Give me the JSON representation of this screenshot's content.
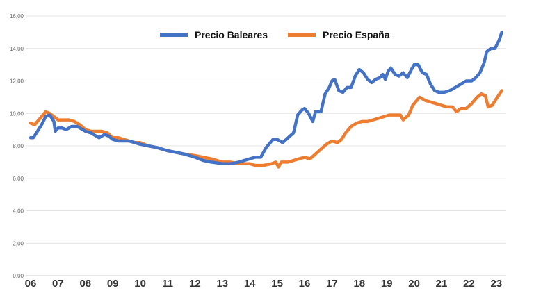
{
  "chart_data": {
    "type": "line",
    "title": "",
    "xlabel": "",
    "ylabel": "",
    "ylim": [
      0,
      16
    ],
    "xlim": [
      2006,
      2023.25
    ],
    "yticks": [
      "0,00",
      "2,00",
      "4,00",
      "6,00",
      "8,00",
      "10,00",
      "12,00",
      "14,00",
      "16,00"
    ],
    "xticks": [
      {
        "value": 2006,
        "label": "06"
      },
      {
        "value": 2007,
        "label": "07"
      },
      {
        "value": 2008,
        "label": "08"
      },
      {
        "value": 2009,
        "label": "09"
      },
      {
        "value": 2010,
        "label": "10"
      },
      {
        "value": 2011,
        "label": "11"
      },
      {
        "value": 2012,
        "label": "12"
      },
      {
        "value": 2013,
        "label": "13"
      },
      {
        "value": 2014,
        "label": "14"
      },
      {
        "value": 2015,
        "label": "15"
      },
      {
        "value": 2016,
        "label": "16"
      },
      {
        "value": 2017,
        "label": "17"
      },
      {
        "value": 2018,
        "label": "18"
      },
      {
        "value": 2019,
        "label": "19"
      },
      {
        "value": 2020,
        "label": "20"
      },
      {
        "value": 2021,
        "label": "21"
      },
      {
        "value": 2022,
        "label": "22"
      },
      {
        "value": 2023,
        "label": "23"
      }
    ],
    "grid": true,
    "legend": "top-center",
    "series": [
      {
        "name": "Precio Baleares",
        "color": "#4472C4",
        "points": [
          [
            2006.0,
            8.5
          ],
          [
            2006.1,
            8.5
          ],
          [
            2006.25,
            8.9
          ],
          [
            2006.4,
            9.3
          ],
          [
            2006.55,
            9.8
          ],
          [
            2006.7,
            9.9
          ],
          [
            2006.85,
            9.5
          ],
          [
            2006.9,
            8.9
          ],
          [
            2007.0,
            9.1
          ],
          [
            2007.15,
            9.1
          ],
          [
            2007.3,
            9.0
          ],
          [
            2007.5,
            9.2
          ],
          [
            2007.7,
            9.2
          ],
          [
            2008.0,
            8.9
          ],
          [
            2008.2,
            8.8
          ],
          [
            2008.4,
            8.6
          ],
          [
            2008.5,
            8.5
          ],
          [
            2008.7,
            8.7
          ],
          [
            2008.85,
            8.6
          ],
          [
            2009.0,
            8.4
          ],
          [
            2009.2,
            8.3
          ],
          [
            2009.4,
            8.3
          ],
          [
            2009.6,
            8.3
          ],
          [
            2009.8,
            8.2
          ],
          [
            2010.0,
            8.1
          ],
          [
            2010.3,
            8.0
          ],
          [
            2010.6,
            7.9
          ],
          [
            2011.0,
            7.7
          ],
          [
            2011.3,
            7.6
          ],
          [
            2011.6,
            7.5
          ],
          [
            2012.0,
            7.3
          ],
          [
            2012.3,
            7.1
          ],
          [
            2012.6,
            7.0
          ],
          [
            2013.0,
            6.9
          ],
          [
            2013.3,
            6.9
          ],
          [
            2013.6,
            7.0
          ],
          [
            2014.0,
            7.2
          ],
          [
            2014.2,
            7.3
          ],
          [
            2014.4,
            7.3
          ],
          [
            2014.6,
            7.9
          ],
          [
            2014.85,
            8.4
          ],
          [
            2015.0,
            8.4
          ],
          [
            2015.2,
            8.2
          ],
          [
            2015.4,
            8.5
          ],
          [
            2015.6,
            8.8
          ],
          [
            2015.75,
            9.9
          ],
          [
            2015.9,
            10.2
          ],
          [
            2016.0,
            10.3
          ],
          [
            2016.15,
            10.0
          ],
          [
            2016.3,
            9.5
          ],
          [
            2016.4,
            10.1
          ],
          [
            2016.6,
            10.1
          ],
          [
            2016.75,
            11.2
          ],
          [
            2016.9,
            11.6
          ],
          [
            2017.0,
            12.0
          ],
          [
            2017.1,
            12.1
          ],
          [
            2017.25,
            11.4
          ],
          [
            2017.4,
            11.3
          ],
          [
            2017.55,
            11.6
          ],
          [
            2017.7,
            11.6
          ],
          [
            2017.85,
            12.3
          ],
          [
            2018.0,
            12.7
          ],
          [
            2018.15,
            12.5
          ],
          [
            2018.3,
            12.1
          ],
          [
            2018.45,
            11.9
          ],
          [
            2018.6,
            12.1
          ],
          [
            2018.75,
            12.2
          ],
          [
            2018.85,
            12.4
          ],
          [
            2018.95,
            12.1
          ],
          [
            2019.05,
            12.6
          ],
          [
            2019.15,
            12.8
          ],
          [
            2019.3,
            12.4
          ],
          [
            2019.45,
            12.3
          ],
          [
            2019.6,
            12.5
          ],
          [
            2019.75,
            12.2
          ],
          [
            2019.9,
            12.7
          ],
          [
            2020.0,
            13.0
          ],
          [
            2020.15,
            13.0
          ],
          [
            2020.3,
            12.5
          ],
          [
            2020.45,
            12.4
          ],
          [
            2020.6,
            11.8
          ],
          [
            2020.75,
            11.4
          ],
          [
            2020.9,
            11.3
          ],
          [
            2021.1,
            11.3
          ],
          [
            2021.3,
            11.4
          ],
          [
            2021.5,
            11.6
          ],
          [
            2021.7,
            11.8
          ],
          [
            2021.9,
            12.0
          ],
          [
            2022.1,
            12.0
          ],
          [
            2022.25,
            12.2
          ],
          [
            2022.4,
            12.5
          ],
          [
            2022.55,
            13.1
          ],
          [
            2022.65,
            13.8
          ],
          [
            2022.8,
            14.0
          ],
          [
            2022.95,
            14.0
          ],
          [
            2023.1,
            14.5
          ],
          [
            2023.2,
            15.0
          ]
        ]
      },
      {
        "name": "Precio España",
        "color": "#ED7D31",
        "points": [
          [
            2006.0,
            9.4
          ],
          [
            2006.15,
            9.3
          ],
          [
            2006.3,
            9.6
          ],
          [
            2006.45,
            9.9
          ],
          [
            2006.55,
            10.1
          ],
          [
            2006.7,
            10.0
          ],
          [
            2006.85,
            9.8
          ],
          [
            2007.0,
            9.6
          ],
          [
            2007.2,
            9.6
          ],
          [
            2007.4,
            9.6
          ],
          [
            2007.6,
            9.5
          ],
          [
            2007.8,
            9.3
          ],
          [
            2008.0,
            9.0
          ],
          [
            2008.2,
            8.9
          ],
          [
            2008.4,
            8.9
          ],
          [
            2008.6,
            8.9
          ],
          [
            2008.8,
            8.8
          ],
          [
            2009.0,
            8.5
          ],
          [
            2009.2,
            8.5
          ],
          [
            2009.4,
            8.4
          ],
          [
            2009.6,
            8.3
          ],
          [
            2009.8,
            8.2
          ],
          [
            2010.0,
            8.2
          ],
          [
            2010.3,
            8.0
          ],
          [
            2010.6,
            7.9
          ],
          [
            2011.0,
            7.7
          ],
          [
            2011.3,
            7.6
          ],
          [
            2011.6,
            7.5
          ],
          [
            2012.0,
            7.4
          ],
          [
            2012.3,
            7.3
          ],
          [
            2012.6,
            7.2
          ],
          [
            2013.0,
            7.0
          ],
          [
            2013.3,
            7.0
          ],
          [
            2013.6,
            6.9
          ],
          [
            2014.0,
            6.9
          ],
          [
            2014.2,
            6.8
          ],
          [
            2014.5,
            6.8
          ],
          [
            2014.8,
            6.9
          ],
          [
            2014.95,
            7.0
          ],
          [
            2015.05,
            6.7
          ],
          [
            2015.15,
            7.0
          ],
          [
            2015.4,
            7.0
          ],
          [
            2015.6,
            7.1
          ],
          [
            2015.8,
            7.2
          ],
          [
            2016.0,
            7.3
          ],
          [
            2016.2,
            7.2
          ],
          [
            2016.4,
            7.5
          ],
          [
            2016.6,
            7.8
          ],
          [
            2016.8,
            8.1
          ],
          [
            2017.0,
            8.3
          ],
          [
            2017.2,
            8.2
          ],
          [
            2017.35,
            8.4
          ],
          [
            2017.5,
            8.8
          ],
          [
            2017.7,
            9.2
          ],
          [
            2017.9,
            9.4
          ],
          [
            2018.1,
            9.5
          ],
          [
            2018.3,
            9.5
          ],
          [
            2018.5,
            9.6
          ],
          [
            2018.7,
            9.7
          ],
          [
            2018.9,
            9.8
          ],
          [
            2019.1,
            9.9
          ],
          [
            2019.3,
            9.9
          ],
          [
            2019.5,
            9.9
          ],
          [
            2019.6,
            9.6
          ],
          [
            2019.8,
            9.9
          ],
          [
            2019.95,
            10.5
          ],
          [
            2020.1,
            10.8
          ],
          [
            2020.2,
            11.0
          ],
          [
            2020.4,
            10.8
          ],
          [
            2020.6,
            10.7
          ],
          [
            2020.8,
            10.6
          ],
          [
            2021.0,
            10.5
          ],
          [
            2021.2,
            10.4
          ],
          [
            2021.4,
            10.4
          ],
          [
            2021.55,
            10.1
          ],
          [
            2021.7,
            10.3
          ],
          [
            2021.9,
            10.3
          ],
          [
            2022.1,
            10.6
          ],
          [
            2022.3,
            11.0
          ],
          [
            2022.45,
            11.2
          ],
          [
            2022.6,
            11.1
          ],
          [
            2022.7,
            10.4
          ],
          [
            2022.85,
            10.5
          ],
          [
            2023.0,
            10.9
          ],
          [
            2023.2,
            11.4
          ]
        ]
      }
    ]
  }
}
